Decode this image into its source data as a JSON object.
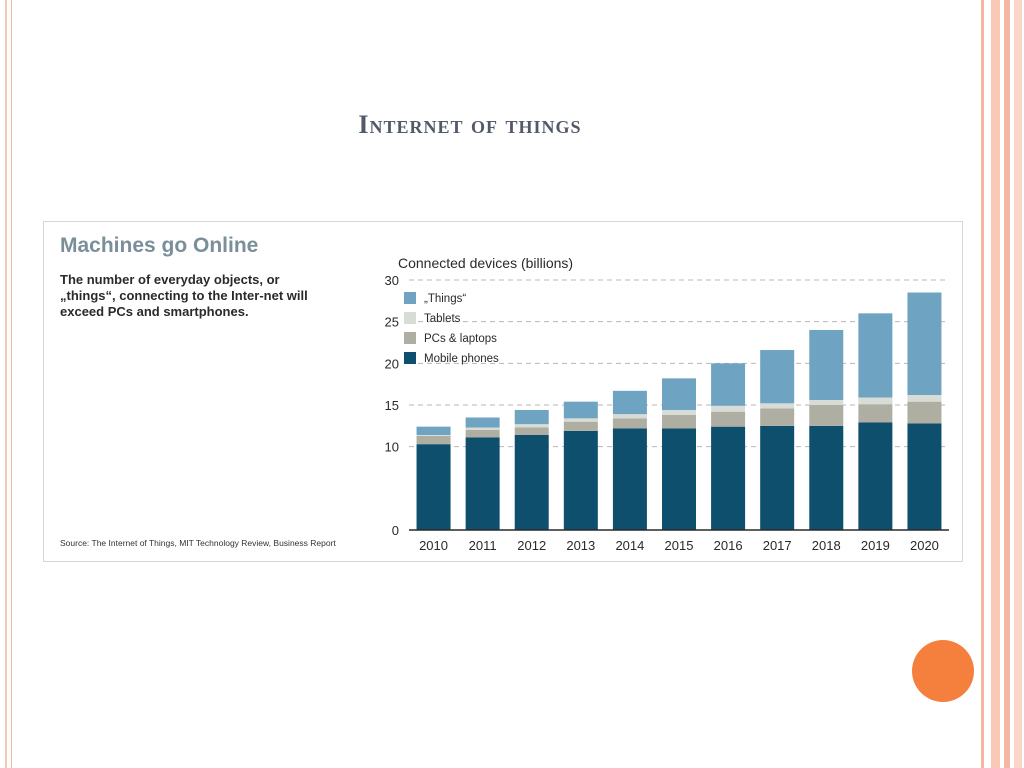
{
  "slide": {
    "title": "Internet of things"
  },
  "figure": {
    "title": "Machines go Online",
    "subtitle": "The number of everyday objects, or „things“, connecting to the Inter-net will exceed PCs and smartphones.",
    "source": "Source: The Internet of Things, MIT Technology Review, Business Report"
  },
  "colors": {
    "mobile": "#0f4f6e",
    "pcs": "#aeaea2",
    "tablets": "#d8dcd6",
    "things": "#6fa3c2",
    "accent_dot": "#f5803e"
  },
  "chart_data": {
    "type": "bar",
    "stacked": true,
    "title": "Connected devices (billions)",
    "categories": [
      "2010",
      "2011",
      "2012",
      "2013",
      "2014",
      "2015",
      "2016",
      "2017",
      "2018",
      "2019",
      "2020"
    ],
    "series": [
      {
        "name": "Mobile phones",
        "color": "#0f4f6e",
        "values": [
          10.3,
          11.1,
          11.4,
          11.9,
          12.2,
          12.2,
          12.4,
          12.5,
          12.5,
          12.9,
          12.8
        ]
      },
      {
        "name": "PCs & laptops",
        "color": "#aeaea2",
        "values": [
          1.0,
          0.9,
          0.9,
          1.1,
          1.2,
          1.6,
          1.8,
          2.1,
          2.5,
          2.2,
          2.6
        ]
      },
      {
        "name": "Tablets",
        "color": "#d8dcd6",
        "values": [
          0.1,
          0.3,
          0.4,
          0.4,
          0.5,
          0.6,
          0.7,
          0.6,
          0.6,
          0.8,
          0.8
        ]
      },
      {
        "name": "„Things“",
        "color": "#6fa3c2",
        "values": [
          1.0,
          1.2,
          1.7,
          2.0,
          2.8,
          3.8,
          5.1,
          6.4,
          8.4,
          10.1,
          12.3
        ]
      }
    ],
    "legend_order": [
      "„Things“",
      "Tablets",
      "PCs & laptops",
      "Mobile phones"
    ],
    "ylim": [
      0,
      30
    ],
    "yticks": [
      "0",
      "10",
      "15",
      "20",
      "25",
      "30"
    ],
    "ytick_values": [
      0,
      10,
      15,
      20,
      25,
      30
    ],
    "grid": true,
    "legend": "top-left"
  }
}
